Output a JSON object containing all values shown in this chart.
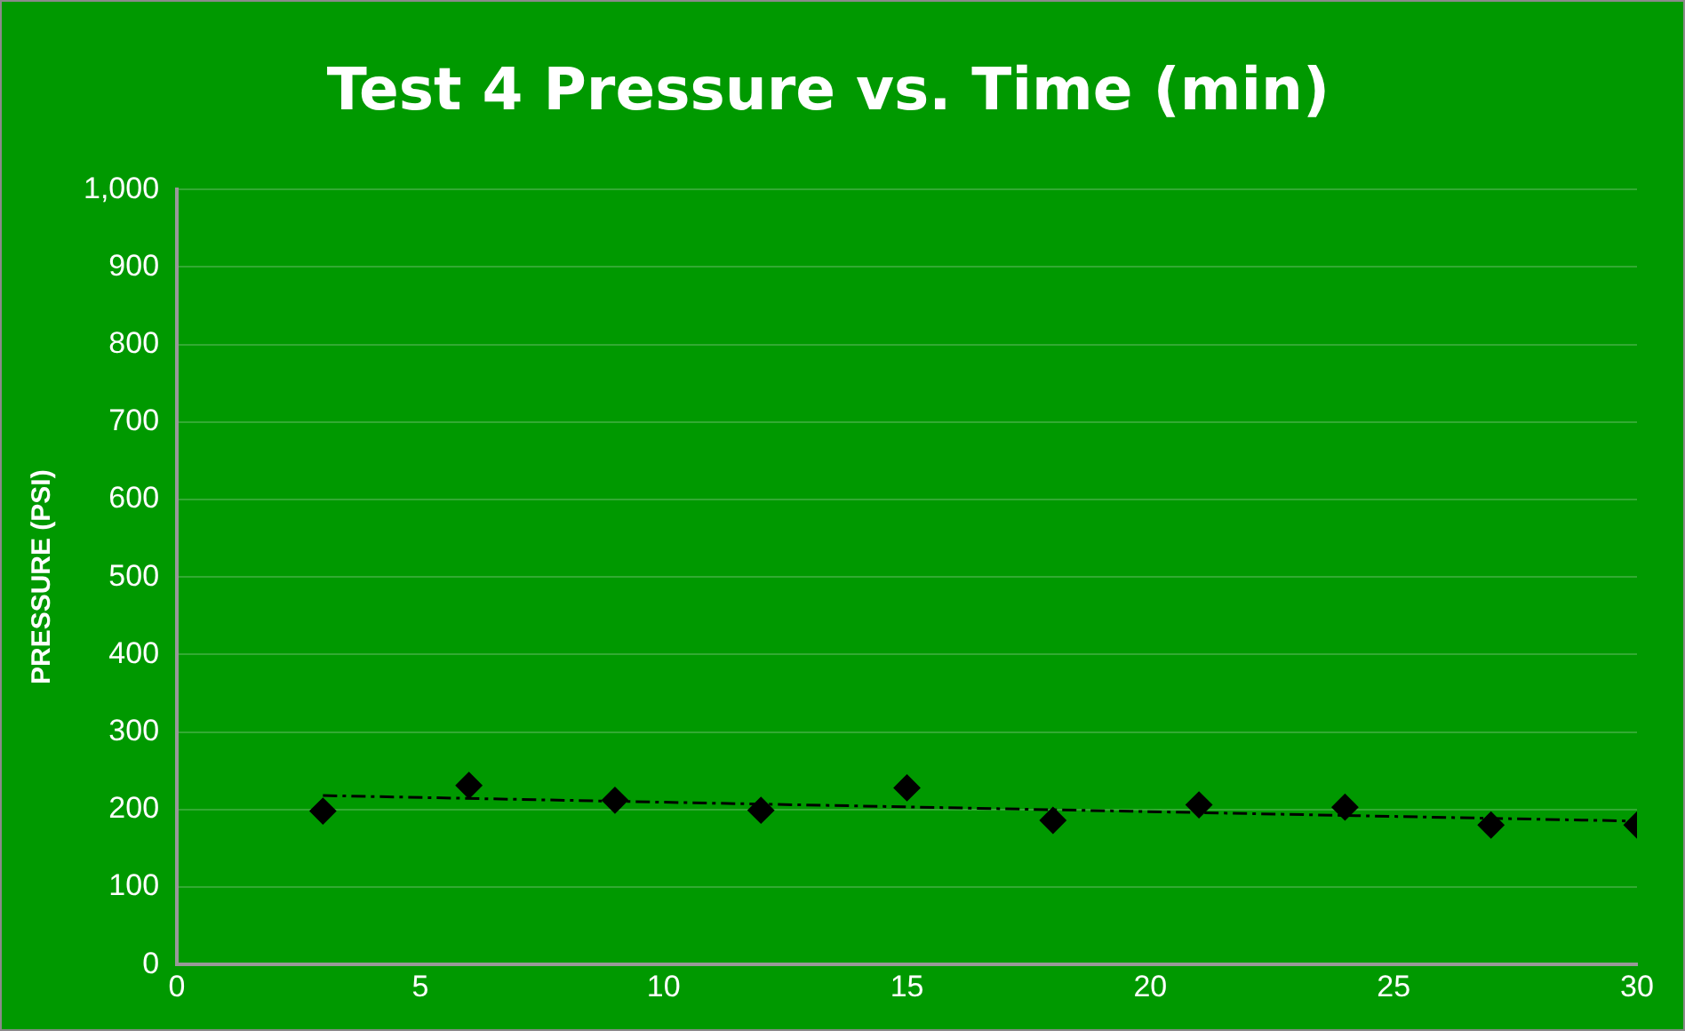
{
  "chart_data": {
    "type": "scatter",
    "title": "Test 4 Pressure vs. Time (min)",
    "ylabel": "PRESSURE (PSI)",
    "xlim": [
      0,
      30
    ],
    "xticks": [
      0,
      5,
      10,
      15,
      20,
      25,
      30
    ],
    "ylim": [
      0,
      1000
    ],
    "yticks": [
      0,
      100,
      200,
      300,
      400,
      500,
      600,
      700,
      800,
      900,
      {
        "value": 1000,
        "label": "1,000"
      }
    ],
    "grid": "y",
    "legend": false,
    "marker": "diamond",
    "series": [
      {
        "color": "#000000",
        "x": [
          3,
          6,
          9,
          12,
          15,
          18,
          21,
          24,
          27,
          30
        ],
        "values": [
          198,
          231,
          212,
          199,
          228,
          186,
          206,
          203,
          180,
          180
        ]
      },
      {
        "type": "line",
        "color": "#000000",
        "line_style": "dashed",
        "marker": "none",
        "x": [
          3,
          30
        ],
        "values": [
          218,
          185
        ]
      }
    ]
  }
}
